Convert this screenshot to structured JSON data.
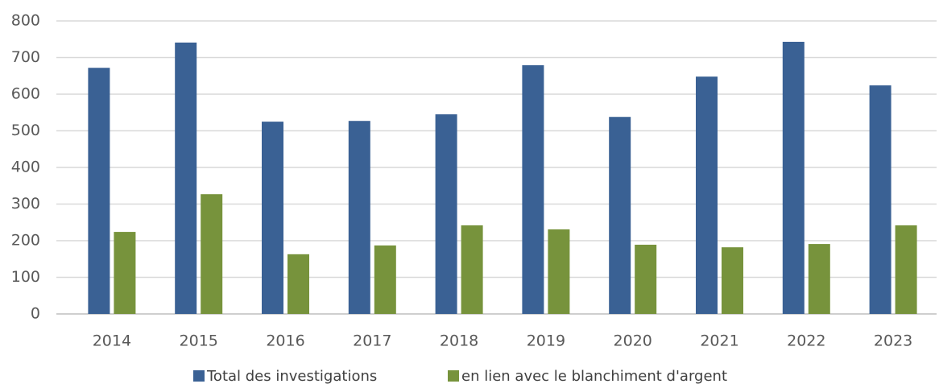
{
  "chart_data": {
    "type": "bar",
    "categories": [
      "2014",
      "2015",
      "2016",
      "2017",
      "2018",
      "2019",
      "2020",
      "2021",
      "2022",
      "2023"
    ],
    "series": [
      {
        "name": "Total des investigations",
        "color": "#3a6194",
        "values": [
          672,
          741,
          525,
          527,
          545,
          679,
          538,
          648,
          743,
          624
        ]
      },
      {
        "name": "en lien avec le blanchiment d'argent",
        "color": "#77933c",
        "values": [
          224,
          327,
          163,
          187,
          242,
          231,
          189,
          182,
          191,
          242
        ]
      }
    ],
    "ylim": [
      0,
      800
    ],
    "yticks": [
      0,
      100,
      200,
      300,
      400,
      500,
      600,
      700,
      800
    ],
    "grid": true,
    "legend": "bottom"
  }
}
